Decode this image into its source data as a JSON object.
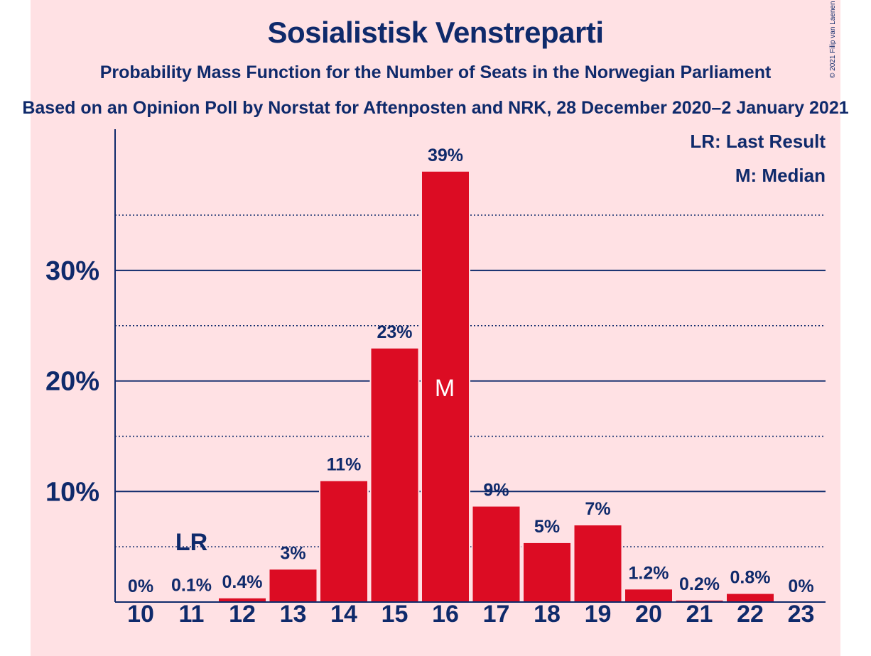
{
  "title": "Sosialistisk Venstreparti",
  "subtitle": "Probability Mass Function for the Number of Seats in the Norwegian Parliament",
  "subtitle2": "Based on an Opinion Poll by Norstat for Aftenposten and NRK, 28 December 2020–2 January 2021",
  "copyright": "© 2021 Filip van Laenen",
  "legend": {
    "last_result": "LR: Last Result",
    "median": "M: Median"
  },
  "colors": {
    "bar": "#dc0c23",
    "text": "#0f2a6b",
    "background": "#ffe1e4"
  },
  "chart_data": {
    "type": "bar",
    "categories": [
      "10",
      "11",
      "12",
      "13",
      "14",
      "15",
      "16",
      "17",
      "18",
      "19",
      "20",
      "21",
      "22",
      "23"
    ],
    "values": [
      0,
      0.1,
      0.4,
      3,
      11,
      23,
      39,
      8.7,
      5.4,
      7,
      1.2,
      0.2,
      0.8,
      0
    ],
    "value_labels": [
      "0%",
      "0.1%",
      "0.4%",
      "3%",
      "11%",
      "23%",
      "39%",
      "9%",
      "5%",
      "7%",
      "1.2%",
      "0.2%",
      "0.8%",
      "0%"
    ],
    "y_ticks": [
      10,
      20,
      30
    ],
    "y_tick_labels": [
      "10%",
      "20%",
      "30%"
    ],
    "y_minor_ticks": [
      5,
      15,
      25,
      35
    ],
    "ylim": [
      0,
      42
    ],
    "last_result_seat": "11",
    "last_result_label": "LR",
    "median_seat": "16",
    "median_label": "M",
    "grid": true,
    "legend_position": "top-right"
  }
}
